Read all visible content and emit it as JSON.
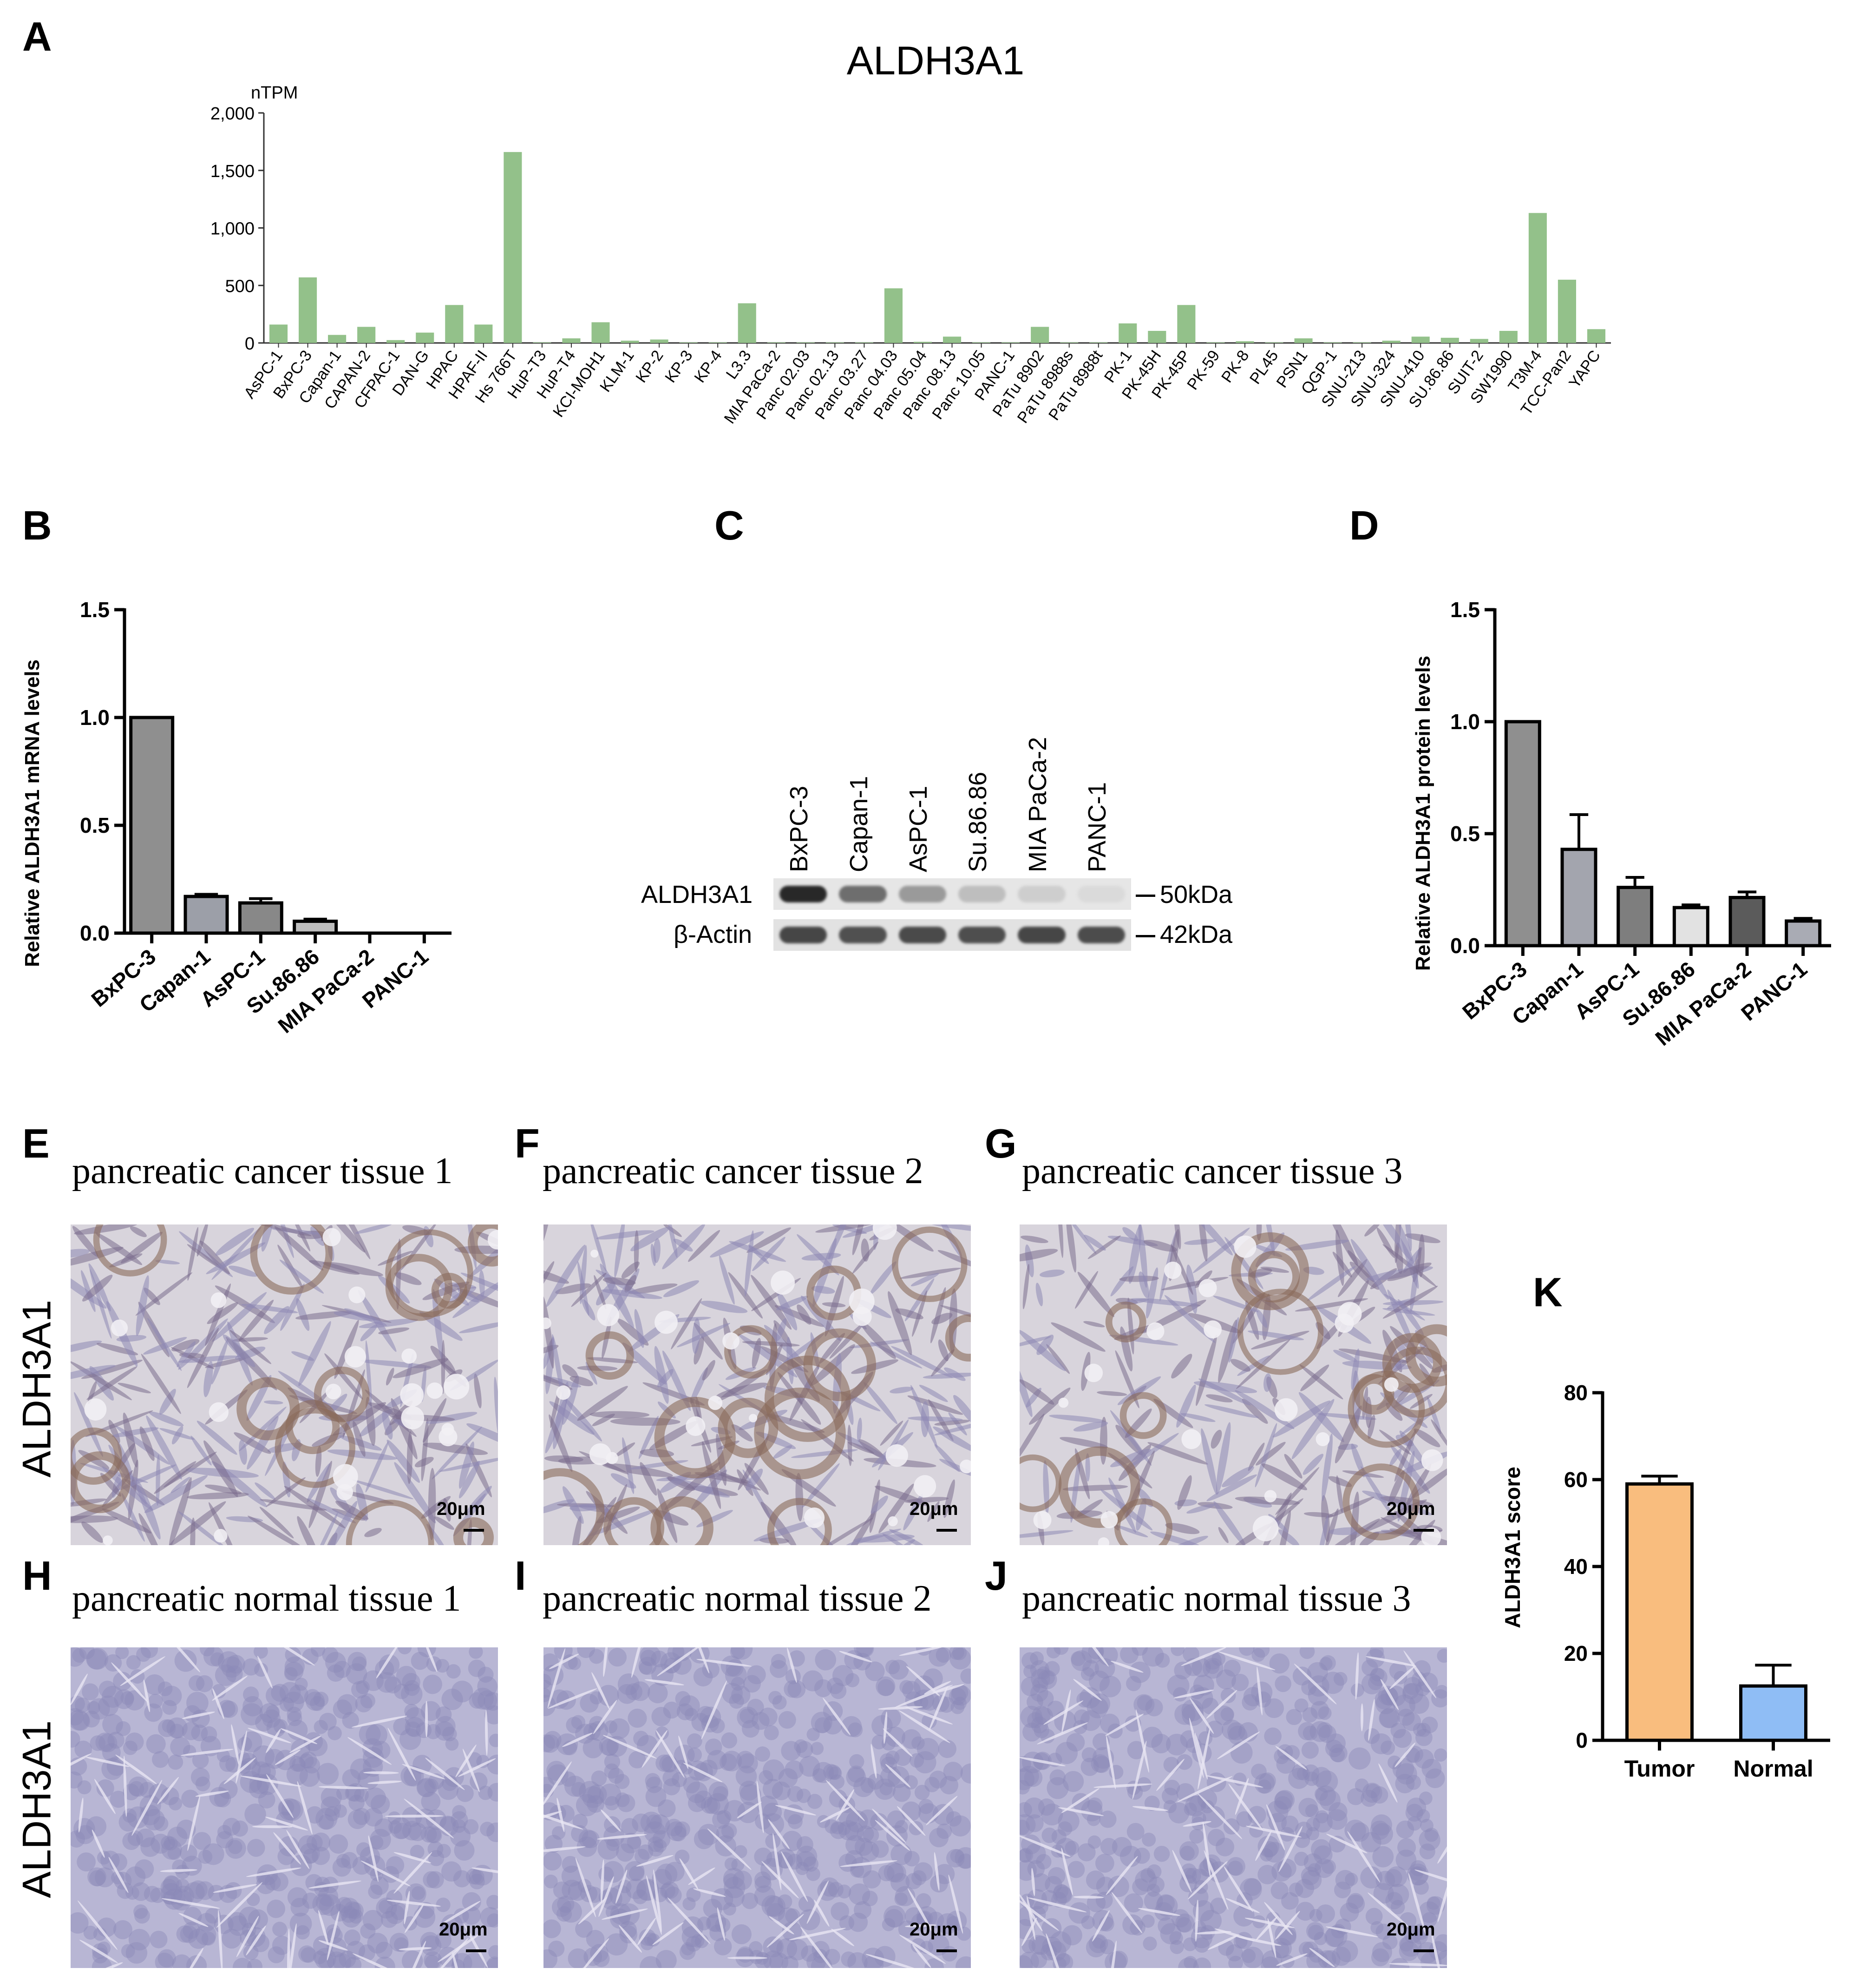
{
  "panels": {
    "A": "A",
    "B": "B",
    "C": "C",
    "D": "D",
    "E": "E",
    "F": "F",
    "G": "G",
    "H": "H",
    "I": "I",
    "J": "J",
    "K": "K"
  },
  "chart_data": [
    {
      "id": "A",
      "type": "bar",
      "title": "ALDH3A1",
      "ylabel": "nTPM",
      "ylim": [
        0,
        2000
      ],
      "yticks": [
        "0",
        "500",
        "1,000",
        "1,500",
        "2,000"
      ],
      "color": "#93c18a",
      "categories": [
        "AsPC-1",
        "BxPC-3",
        "Capan-1",
        "CAPAN-2",
        "CFPAC-1",
        "DAN-G",
        "HPAC",
        "HPAF-II",
        "Hs 766T",
        "HuP-T3",
        "HuP-T4",
        "KCI-MOH1",
        "KLM-1",
        "KP-2",
        "KP-3",
        "KP-4",
        "L3.3",
        "MIA PaCa-2",
        "Panc 02.03",
        "Panc 02.13",
        "Panc 03.27",
        "Panc 04.03",
        "Panc 05.04",
        "Panc 08.13",
        "Panc 10.05",
        "PANC-1",
        "PaTu 8902",
        "PaTu 8988s",
        "PaTu 8988t",
        "PK-1",
        "PK-45H",
        "PK-45P",
        "PK-59",
        "PK-8",
        "PL45",
        "PSN1",
        "QGP-1",
        "SNU-213",
        "SNU-324",
        "SNU-410",
        "SU.86.86",
        "SUIT-2",
        "SW1990",
        "T3M-4",
        "TCC-Pan2",
        "YAPC"
      ],
      "values": [
        160,
        570,
        70,
        140,
        25,
        90,
        330,
        160,
        1660,
        5,
        40,
        180,
        20,
        30,
        5,
        5,
        345,
        5,
        5,
        5,
        5,
        475,
        10,
        55,
        5,
        5,
        140,
        5,
        5,
        170,
        105,
        330,
        5,
        15,
        5,
        40,
        5,
        5,
        20,
        55,
        45,
        35,
        105,
        1130,
        550,
        120
      ]
    },
    {
      "id": "B",
      "type": "bar",
      "ylabel": "Relative ALDH3A1 mRNA levels",
      "ylim": [
        0,
        1.5
      ],
      "yticks": [
        "0.0",
        "0.5",
        "1.0",
        "1.5"
      ],
      "categories": [
        "BxPC-3",
        "Capan-1",
        "AsPC-1",
        "Su.86.86",
        "MIA PaCa-2",
        "PANC-1"
      ],
      "values": [
        1.0,
        0.17,
        0.14,
        0.055,
        0.0,
        0.0
      ],
      "errors": [
        0.0,
        0.01,
        0.02,
        0.01,
        0.0,
        0.0
      ],
      "colors": [
        "#8f8f8f",
        "#9c9fa8",
        "#888888",
        "#bdbdbd",
        "#555555",
        "#aaaaaa"
      ]
    },
    {
      "id": "D",
      "type": "bar",
      "ylabel": "Relative ALDH3A1 protein levels",
      "ylim": [
        0,
        1.5
      ],
      "yticks": [
        "0.0",
        "0.5",
        "1.0",
        "1.5"
      ],
      "categories": [
        "BxPC-3",
        "Capan-1",
        "AsPC-1",
        "Su.86.86",
        "MIA PaCa-2",
        "PANC-1"
      ],
      "values": [
        1.0,
        0.43,
        0.26,
        0.17,
        0.215,
        0.11
      ],
      "errors": [
        0.0,
        0.155,
        0.045,
        0.012,
        0.025,
        0.012
      ],
      "colors": [
        "#8f8f8f",
        "#a3a5ae",
        "#7e7e7e",
        "#e2e2e2",
        "#5b5b5b",
        "#a9abb4"
      ]
    },
    {
      "id": "K",
      "type": "bar",
      "ylabel": "ALDH3A1 score",
      "ylim": [
        0,
        80
      ],
      "yticks": [
        "0",
        "20",
        "40",
        "60",
        "80"
      ],
      "categories": [
        "Tumor",
        "Normal"
      ],
      "values": [
        59,
        12.5
      ],
      "errors": [
        1.8,
        4.8
      ],
      "colors": [
        "#f9bd7e",
        "#8fbdf5"
      ]
    }
  ],
  "western_blot": {
    "lanes": [
      "BxPC-3",
      "Capan-1",
      "AsPC-1",
      "Su.86.86",
      "MIA PaCa-2",
      "PANC-1"
    ],
    "rows": [
      {
        "label": "ALDH3A1",
        "marker": "50kDa",
        "intensities": [
          0.95,
          0.6,
          0.38,
          0.2,
          0.12,
          0.06
        ]
      },
      {
        "label": "β-Actin",
        "marker": "42kDa",
        "intensities": [
          0.8,
          0.75,
          0.78,
          0.76,
          0.8,
          0.77
        ]
      }
    ]
  },
  "ihc": {
    "row_label": "ALDH3A1",
    "scale_label": "20μm",
    "tissues": [
      {
        "panel": "E",
        "title": "pancreatic cancer tissue 1",
        "kind": "cancer"
      },
      {
        "panel": "F",
        "title": "pancreatic cancer tissue 2",
        "kind": "cancer"
      },
      {
        "panel": "G",
        "title": "pancreatic cancer tissue 3",
        "kind": "cancer"
      },
      {
        "panel": "H",
        "title": "pancreatic normal tissue 1",
        "kind": "normal"
      },
      {
        "panel": "I",
        "title": "pancreatic normal tissue 2",
        "kind": "normal"
      },
      {
        "panel": "J",
        "title": "pancreatic normal tissue 3",
        "kind": "normal"
      }
    ]
  }
}
